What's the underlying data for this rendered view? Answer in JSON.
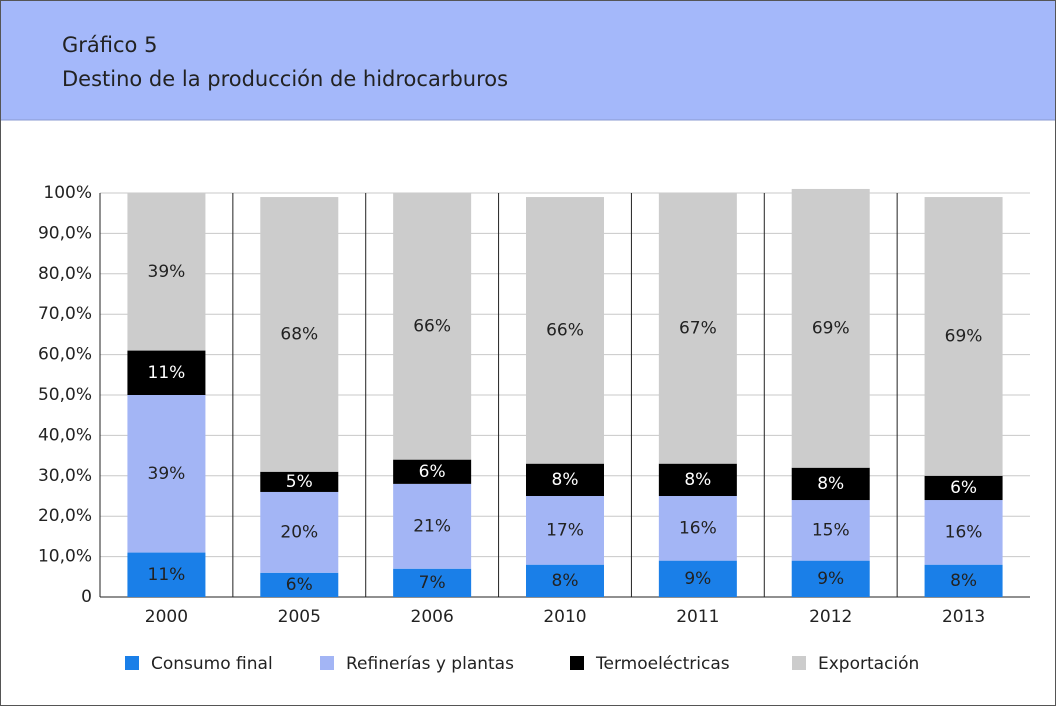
{
  "chart_data": {
    "type": "stacked_bar",
    "title": "Gráfico 5",
    "subtitle": "Destino de la producción de hidrocarburos",
    "categories": [
      "2000",
      "2005",
      "2006",
      "2010",
      "2011",
      "2012",
      "2013"
    ],
    "series": [
      {
        "name": "Consumo final",
        "color": "#1a7fe8",
        "values": [
          11,
          6,
          7,
          8,
          9,
          9,
          8
        ],
        "value_labels": [
          "11%",
          "6%",
          "7%",
          "8%",
          "9%",
          "9%",
          "8%"
        ]
      },
      {
        "name": "Refinerías y plantas",
        "color": "#a3b5f5",
        "values": [
          39,
          20,
          21,
          17,
          16,
          15,
          16
        ],
        "value_labels": [
          "39%",
          "20%",
          "21%",
          "17%",
          "16%",
          "15%",
          "16%"
        ]
      },
      {
        "name": "Termoeléctricas",
        "color": "#000000",
        "values": [
          11,
          5,
          6,
          8,
          8,
          8,
          6
        ],
        "value_labels": [
          "11%",
          "5%",
          "6%",
          "8%",
          "8%",
          "8%",
          "6%"
        ]
      },
      {
        "name": "Exportación",
        "color": "#cccccc",
        "values": [
          39,
          68,
          66,
          66,
          67,
          69,
          69
        ],
        "value_labels": [
          "39%",
          "68%",
          "66%",
          "66%",
          "67%",
          "69%",
          "69%"
        ]
      }
    ],
    "ylim": [
      0,
      100
    ],
    "yticks": [
      0,
      {
        "value": 10,
        "label": "10,0%"
      },
      {
        "value": 20,
        "label": "20,0%"
      },
      {
        "value": 30,
        "label": "30,0%"
      },
      {
        "value": 40,
        "label": "40,0%"
      },
      {
        "value": 50,
        "label": "50,0%"
      },
      {
        "value": 60,
        "label": "60,0%"
      },
      {
        "value": 70,
        "label": "70,0%"
      },
      {
        "value": 80,
        "label": "80,0%"
      },
      {
        "value": 90,
        "label": "90,0%"
      },
      {
        "value": 100,
        "label": "100%"
      }
    ],
    "grid": true
  }
}
